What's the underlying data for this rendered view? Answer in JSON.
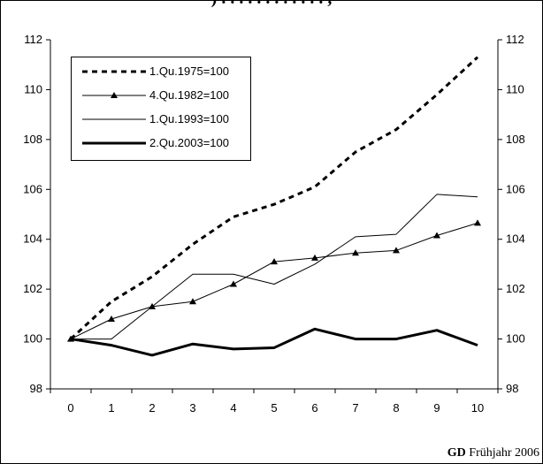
{
  "title_fragment": ") . . . . . . . . . . . . ,",
  "chart_data": {
    "type": "line",
    "x": [
      0,
      1,
      2,
      3,
      4,
      5,
      6,
      7,
      8,
      9,
      10
    ],
    "xlim": [
      -0.5,
      10.5
    ],
    "ylim": [
      98,
      112
    ],
    "yticks": [
      98,
      100,
      102,
      104,
      106,
      108,
      110,
      112
    ],
    "xticks": [
      0,
      1,
      2,
      3,
      4,
      5,
      6,
      7,
      8,
      9,
      10
    ],
    "grid": false,
    "legend_position": "top-left",
    "series": [
      {
        "name": "1.Qu.1975=100",
        "style": "dotted-thick",
        "color": "#000000",
        "values": [
          100.0,
          101.5,
          102.5,
          103.8,
          104.9,
          105.4,
          106.1,
          107.5,
          108.4,
          109.8,
          111.3
        ]
      },
      {
        "name": "4.Qu.1982=100",
        "style": "line-triangle",
        "color": "#000000",
        "values": [
          100.0,
          100.8,
          101.3,
          101.5,
          102.2,
          103.1,
          103.25,
          103.45,
          103.55,
          104.15,
          104.65
        ]
      },
      {
        "name": "1.Qu.1993=100",
        "style": "thin",
        "color": "#000000",
        "values": [
          100.0,
          100.0,
          101.3,
          102.6,
          102.6,
          102.2,
          103.0,
          104.1,
          104.2,
          105.8,
          105.7
        ]
      },
      {
        "name": "2.Qu.2003=100",
        "style": "thick",
        "color": "#000000",
        "values": [
          100.0,
          99.75,
          99.35,
          99.8,
          99.6,
          99.65,
          100.4,
          100.0,
          100.0,
          100.35,
          99.75
        ]
      }
    ]
  },
  "source": {
    "bold": "GD",
    "text": " Frühjahr 2006"
  }
}
